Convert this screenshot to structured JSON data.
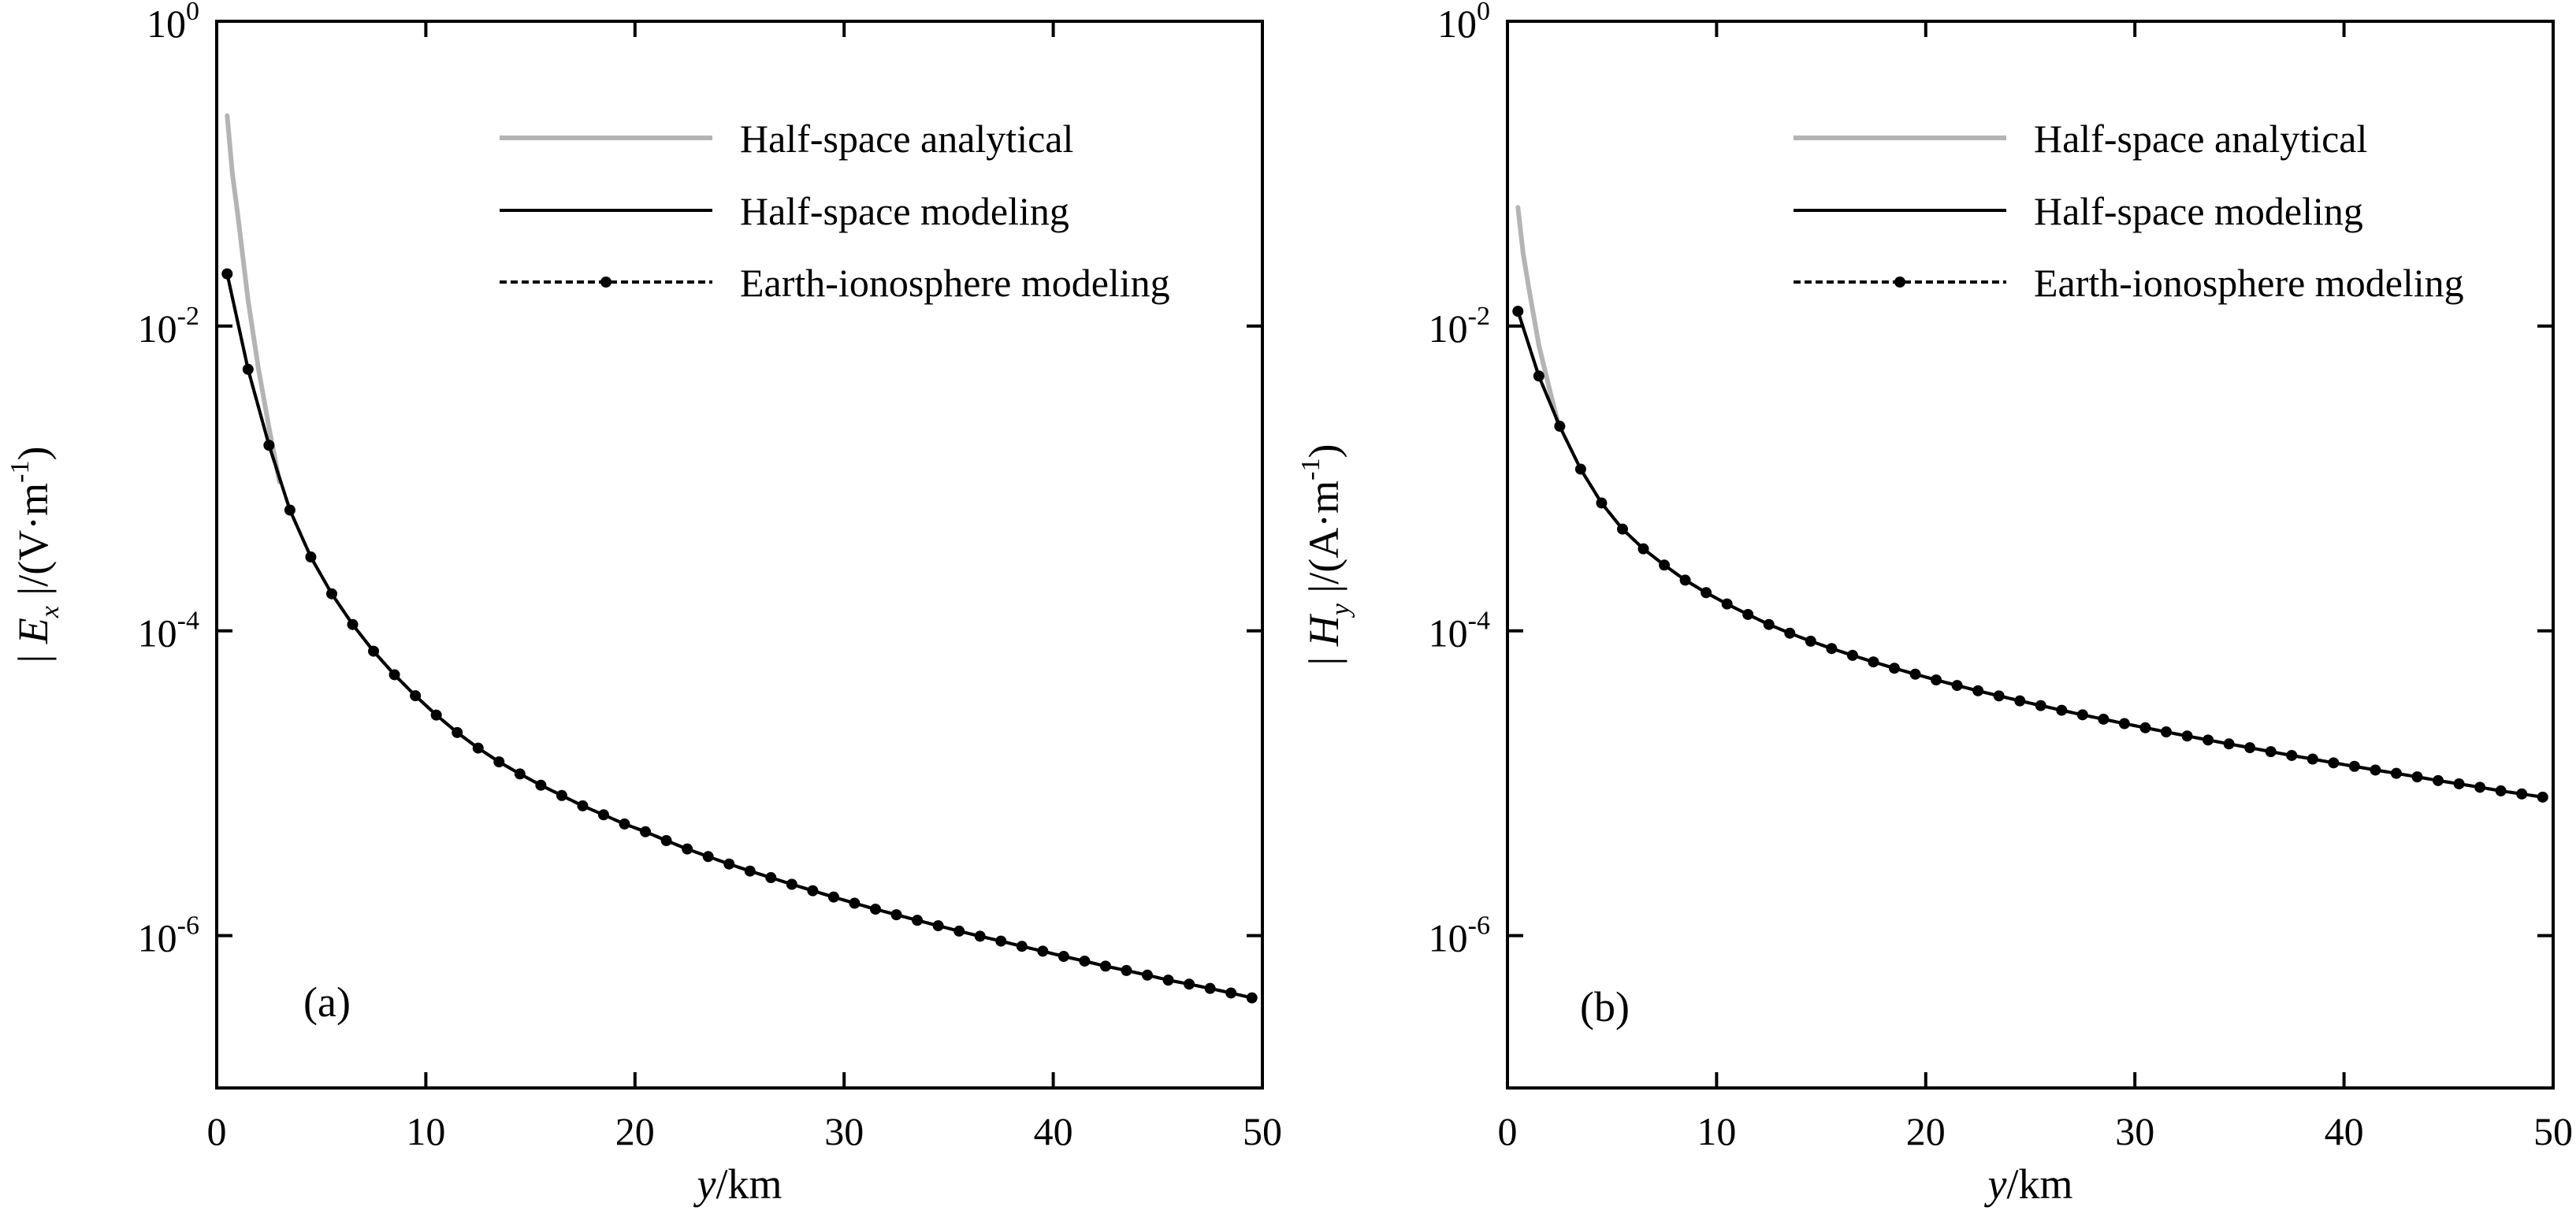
{
  "chart_data": [
    {
      "type": "line",
      "panel_label": "(a)",
      "xlabel": {
        "italic": "y",
        "rest": "/km"
      },
      "ylabel": {
        "prefix": "| ",
        "italic": "E",
        "sub": "x",
        "mid": " |/(V·m",
        "sup": "-1",
        "suffix": ")"
      },
      "xlim": [
        0,
        50
      ],
      "ylim": [
        1e-07,
        1
      ],
      "yscale": "log",
      "xticks": [
        "0",
        "10",
        "20",
        "30",
        "40",
        "50"
      ],
      "yticks": [
        {
          "base": "10",
          "exp": "0"
        },
        {
          "base": "10",
          "exp": "-2"
        },
        {
          "base": "10",
          "exp": "-4"
        },
        {
          "base": "10",
          "exp": "-6"
        }
      ],
      "legend_position": "top-right",
      "series": [
        {
          "name": "Half-space analytical",
          "color": "#b4b4b4",
          "style": "solid",
          "x": [
            0.5,
            0.75,
            1,
            1.5,
            2,
            2.5,
            3
          ],
          "y": [
            0.24,
            0.1,
            0.055,
            0.0148,
            0.0052,
            0.00215,
            0.00095
          ]
        },
        {
          "name": "Half-space modeling",
          "color": "#000000",
          "style": "solid",
          "x": [
            0.5,
            1.5,
            2.5,
            3.5,
            4.5,
            5.5,
            6.5,
            7.5,
            8.5,
            9.5,
            10.5,
            11.5,
            12.5,
            13.5,
            14.5,
            15.5,
            16.5,
            17.5,
            18.5,
            19.5,
            20.5,
            21.5,
            22.5,
            23.5,
            24.5,
            25.5,
            26.5,
            27.5,
            28.5,
            29.5,
            30.5,
            31.5,
            32.5,
            33.5,
            34.5,
            35.5,
            36.5,
            37.5,
            38.5,
            39.5,
            40.5,
            41.5,
            42.5,
            43.5,
            44.5,
            45.5,
            46.5,
            47.5,
            48.5,
            49.5
          ],
          "y": [
            0.022,
            0.0052,
            0.00165,
            0.00062,
            0.000305,
            0.000175,
            0.00011,
            7.35e-05,
            5.15e-05,
            3.75e-05,
            2.8e-05,
            2.15e-05,
            1.7e-05,
            1.38e-05,
            1.15e-05,
            9.7e-06,
            8.3e-06,
            7.1e-06,
            6.2e-06,
            5.4e-06,
            4.8e-06,
            4.2e-06,
            3.7e-06,
            3.3e-06,
            2.95e-06,
            2.65e-06,
            2.4e-06,
            2.17e-06,
            1.97e-06,
            1.79e-06,
            1.63e-06,
            1.49e-06,
            1.37e-06,
            1.26e-06,
            1.16e-06,
            1.07e-06,
            9.9e-07,
            9.2e-07,
            8.5e-07,
            7.9e-07,
            7.3e-07,
            6.8e-07,
            6.3e-07,
            5.9e-07,
            5.5e-07,
            5.1e-07,
            4.8e-07,
            4.5e-07,
            4.2e-07,
            3.9e-07
          ]
        },
        {
          "name": "Earth-ionosphere modeling",
          "color": "#000000",
          "style": "dotted-markers",
          "x": [
            0.5,
            1.5,
            2.5,
            3.5,
            4.5,
            5.5,
            6.5,
            7.5,
            8.5,
            9.5,
            10.5,
            11.5,
            12.5,
            13.5,
            14.5,
            15.5,
            16.5,
            17.5,
            18.5,
            19.5,
            20.5,
            21.5,
            22.5,
            23.5,
            24.5,
            25.5,
            26.5,
            27.5,
            28.5,
            29.5,
            30.5,
            31.5,
            32.5,
            33.5,
            34.5,
            35.5,
            36.5,
            37.5,
            38.5,
            39.5,
            40.5,
            41.5,
            42.5,
            43.5,
            44.5,
            45.5,
            46.5,
            47.5,
            48.5,
            49.5
          ],
          "y": [
            0.022,
            0.0052,
            0.00165,
            0.00062,
            0.000305,
            0.000175,
            0.00011,
            7.35e-05,
            5.15e-05,
            3.75e-05,
            2.8e-05,
            2.15e-05,
            1.7e-05,
            1.38e-05,
            1.15e-05,
            9.7e-06,
            8.3e-06,
            7.1e-06,
            6.2e-06,
            5.4e-06,
            4.8e-06,
            4.2e-06,
            3.7e-06,
            3.3e-06,
            2.95e-06,
            2.65e-06,
            2.4e-06,
            2.17e-06,
            1.97e-06,
            1.79e-06,
            1.63e-06,
            1.49e-06,
            1.37e-06,
            1.26e-06,
            1.16e-06,
            1.07e-06,
            9.9e-07,
            9.2e-07,
            8.5e-07,
            7.9e-07,
            7.3e-07,
            6.8e-07,
            6.3e-07,
            5.9e-07,
            5.5e-07,
            5.1e-07,
            4.8e-07,
            4.5e-07,
            4.2e-07,
            3.9e-07
          ]
        }
      ]
    },
    {
      "type": "line",
      "panel_label": "(b)",
      "xlabel": {
        "italic": "y",
        "rest": "/km"
      },
      "ylabel": {
        "prefix": "| ",
        "italic": "H",
        "sub": "y",
        "mid": " |/(A·m",
        "sup": "-1",
        "suffix": ")"
      },
      "xlim": [
        0,
        50
      ],
      "ylim": [
        1e-07,
        1
      ],
      "yscale": "log",
      "xticks": [
        "0",
        "10",
        "20",
        "30",
        "40",
        "50"
      ],
      "yticks": [
        {
          "base": "10",
          "exp": "0"
        },
        {
          "base": "10",
          "exp": "-2"
        },
        {
          "base": "10",
          "exp": "-4"
        },
        {
          "base": "10",
          "exp": "-6"
        }
      ],
      "legend_position": "top-right",
      "series": [
        {
          "name": "Half-space analytical",
          "color": "#b4b4b4",
          "style": "solid",
          "x": [
            0.5,
            0.75,
            1,
            1.5,
            2,
            2.5
          ],
          "y": [
            0.06,
            0.03,
            0.0185,
            0.0075,
            0.0039,
            0.0021
          ]
        },
        {
          "name": "Half-space modeling",
          "color": "#000000",
          "style": "solid",
          "x": [
            0.5,
            1.5,
            2.5,
            3.5,
            4.5,
            5.5,
            6.5,
            7.5,
            8.5,
            9.5,
            10.5,
            11.5,
            12.5,
            13.5,
            14.5,
            15.5,
            16.5,
            17.5,
            18.5,
            19.5,
            20.5,
            21.5,
            22.5,
            23.5,
            24.5,
            25.5,
            26.5,
            27.5,
            28.5,
            29.5,
            30.5,
            31.5,
            32.5,
            33.5,
            34.5,
            35.5,
            36.5,
            37.5,
            38.5,
            39.5,
            40.5,
            41.5,
            42.5,
            43.5,
            44.5,
            45.5,
            46.5,
            47.5,
            48.5,
            49.5
          ],
          "y": [
            0.0125,
            0.0047,
            0.0022,
            0.00115,
            0.00069,
            0.000465,
            0.000345,
            0.00027,
            0.000215,
            0.000178,
            0.00015,
            0.000128,
            0.00011,
            9.65e-05,
            8.55e-05,
            7.65e-05,
            6.9e-05,
            6.25e-05,
            5.68e-05,
            5.19e-05,
            4.76e-05,
            4.38e-05,
            4.04e-05,
            3.74e-05,
            3.47e-05,
            3.23e-05,
            3.01e-05,
            2.81e-05,
            2.63e-05,
            2.46e-05,
            2.31e-05,
            2.17e-05,
            2.04e-05,
            1.92e-05,
            1.81e-05,
            1.71e-05,
            1.61e-05,
            1.52e-05,
            1.44e-05,
            1.36e-05,
            1.29e-05,
            1.22e-05,
            1.16e-05,
            1.1e-05,
            1.04e-05,
            9.9e-06,
            9.4e-06,
            8.9e-06,
            8.5e-06,
            8.1e-06
          ]
        },
        {
          "name": "Earth-ionosphere modeling",
          "color": "#000000",
          "style": "dotted-markers",
          "x": [
            0.5,
            1.5,
            2.5,
            3.5,
            4.5,
            5.5,
            6.5,
            7.5,
            8.5,
            9.5,
            10.5,
            11.5,
            12.5,
            13.5,
            14.5,
            15.5,
            16.5,
            17.5,
            18.5,
            19.5,
            20.5,
            21.5,
            22.5,
            23.5,
            24.5,
            25.5,
            26.5,
            27.5,
            28.5,
            29.5,
            30.5,
            31.5,
            32.5,
            33.5,
            34.5,
            35.5,
            36.5,
            37.5,
            38.5,
            39.5,
            40.5,
            41.5,
            42.5,
            43.5,
            44.5,
            45.5,
            46.5,
            47.5,
            48.5,
            49.5
          ],
          "y": [
            0.0125,
            0.0047,
            0.0022,
            0.00115,
            0.00069,
            0.000465,
            0.000345,
            0.00027,
            0.000215,
            0.000178,
            0.00015,
            0.000128,
            0.00011,
            9.65e-05,
            8.55e-05,
            7.65e-05,
            6.9e-05,
            6.25e-05,
            5.68e-05,
            5.19e-05,
            4.76e-05,
            4.38e-05,
            4.04e-05,
            3.74e-05,
            3.47e-05,
            3.23e-05,
            3.01e-05,
            2.81e-05,
            2.63e-05,
            2.46e-05,
            2.31e-05,
            2.17e-05,
            2.04e-05,
            1.92e-05,
            1.81e-05,
            1.71e-05,
            1.61e-05,
            1.52e-05,
            1.44e-05,
            1.36e-05,
            1.29e-05,
            1.22e-05,
            1.16e-05,
            1.1e-05,
            1.04e-05,
            9.9e-06,
            9.4e-06,
            8.9e-06,
            8.5e-06,
            8.1e-06
          ]
        }
      ]
    }
  ]
}
